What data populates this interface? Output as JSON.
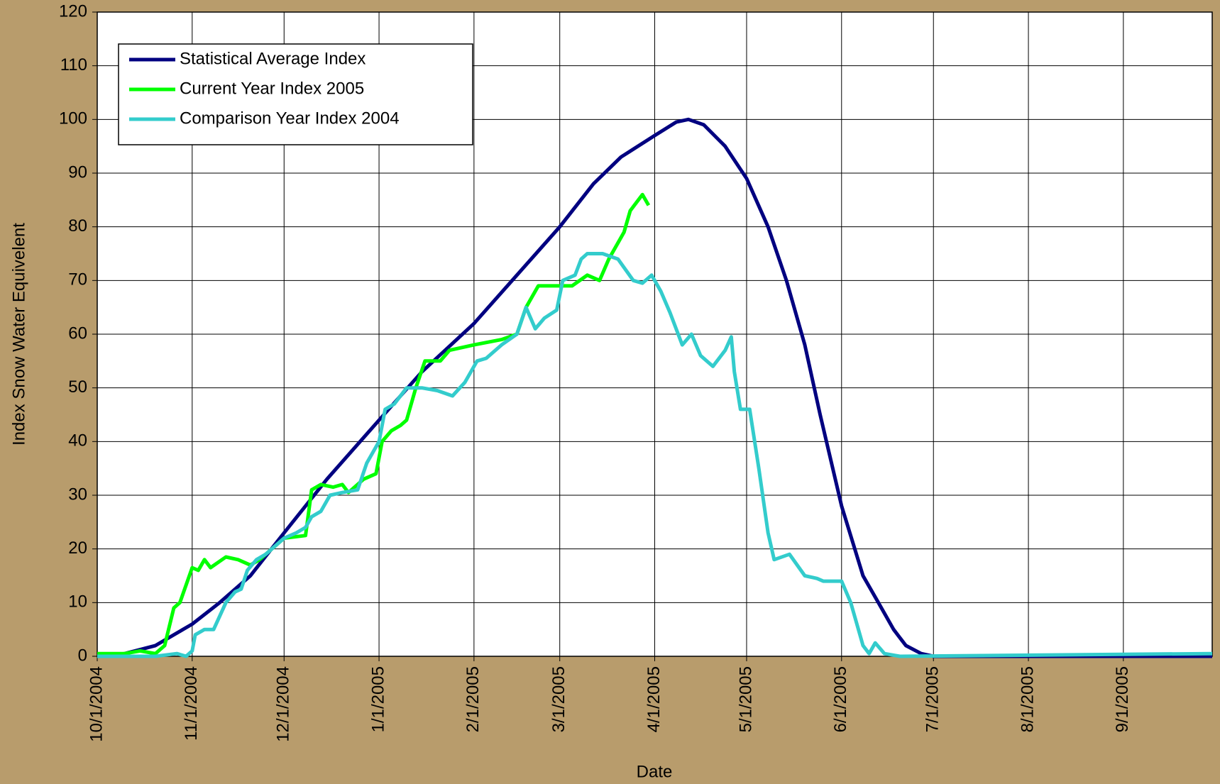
{
  "chart_data": {
    "type": "line",
    "x_label": "Date",
    "y_label": "Index Snow Water Equivelent",
    "xlim": [
      "10/1/2004",
      "9/30/2005"
    ],
    "xticks": [
      "10/1/2004",
      "11/1/2004",
      "12/1/2004",
      "1/1/2005",
      "2/1/2005",
      "3/1/2005",
      "4/1/2005",
      "5/1/2005",
      "6/1/2005",
      "7/1/2005",
      "8/1/2005",
      "9/1/2005"
    ],
    "ylim": [
      0,
      120
    ],
    "yticks": [
      0,
      10,
      20,
      30,
      40,
      50,
      60,
      70,
      80,
      90,
      100,
      110,
      120
    ],
    "grid": true,
    "legend": "upper left",
    "series": [
      {
        "name": "Statistical Average Index",
        "color": "#000080",
        "x": [
          "10/1/2004",
          "10/10/2004",
          "10/20/2004",
          "11/1/2004",
          "11/10/2004",
          "11/20/2004",
          "12/1/2004",
          "12/15/2004",
          "1/1/2005",
          "1/15/2005",
          "2/1/2005",
          "2/15/2005",
          "3/1/2005",
          "3/12/2005",
          "3/21/2005",
          "4/1/2005",
          "4/8/2005",
          "4/12/2005",
          "4/17/2005",
          "4/24/2005",
          "5/1/2005",
          "5/8/2005",
          "5/14/2005",
          "5/20/2005",
          "5/25/2005",
          "6/1/2005",
          "6/8/2005",
          "6/13/2005",
          "6/18/2005",
          "6/22/2005",
          "6/27/2005",
          "7/1/2005",
          "9/30/2005"
        ],
        "values": [
          0,
          0.5,
          2,
          6,
          10,
          15,
          23,
          33,
          44,
          53,
          62,
          71,
          80,
          88,
          93,
          97,
          99.5,
          100,
          99,
          95,
          89,
          80,
          70,
          58,
          45,
          28,
          15,
          10,
          5,
          2,
          0.5,
          0,
          0
        ]
      },
      {
        "name": "Current Year Index 2005",
        "color": "#00ff00",
        "x": [
          "10/1/2004",
          "10/10/2004",
          "10/15/2004",
          "10/20/2004",
          "10/23/2004",
          "10/26/2004",
          "10/28/2004",
          "11/1/2004",
          "11/3/2004",
          "11/5/2004",
          "11/7/2004",
          "11/12/2004",
          "11/16/2004",
          "11/20/2004",
          "11/23/2004",
          "12/1/2004",
          "12/8/2004",
          "12/10/2004",
          "12/13/2004",
          "12/17/2004",
          "12/20/2004",
          "12/22/2004",
          "12/27/2004",
          "12/31/2004",
          "1/2/2005",
          "1/5/2005",
          "1/8/2005",
          "1/10/2005",
          "1/13/2005",
          "1/16/2005",
          "1/21/2005",
          "1/24/2005",
          "2/1/2005",
          "2/10/2005",
          "2/15/2005",
          "2/18/2005",
          "2/22/2005",
          "3/1/2005",
          "3/5/2005",
          "3/10/2005",
          "3/14/2005",
          "3/17/2005",
          "3/20/2005",
          "3/22/2005",
          "3/24/2005",
          "3/28/2005",
          "3/30/2005"
        ],
        "values": [
          0.5,
          0.5,
          1,
          0.5,
          2,
          9,
          10,
          16.5,
          16,
          18,
          16.5,
          18.5,
          18,
          17,
          18,
          22,
          22.5,
          31,
          32,
          31.5,
          32,
          30.5,
          33,
          34,
          40,
          42,
          43,
          44,
          50,
          55,
          55,
          57,
          58,
          59,
          60,
          65,
          69,
          69,
          69,
          71,
          70,
          74,
          77,
          79,
          83,
          86,
          84
        ]
      },
      {
        "name": "Comparison Year Index 2004",
        "color": "#33cccc",
        "x": [
          "10/1/2004",
          "10/20/2004",
          "10/27/2004",
          "10/30/2004",
          "11/1/2004",
          "11/2/2004",
          "11/5/2004",
          "11/8/2004",
          "11/12/2004",
          "11/15/2004",
          "11/17/2004",
          "11/19/2004",
          "11/22/2004",
          "11/25/2004",
          "12/1/2004",
          "12/5/2004",
          "12/8/2004",
          "12/10/2004",
          "12/13/2004",
          "12/16/2004",
          "12/20/2004",
          "12/25/2004",
          "12/28/2004",
          "1/1/2005",
          "1/3/2005",
          "1/6/2005",
          "1/10/2005",
          "1/15/2005",
          "1/20/2005",
          "1/25/2005",
          "1/29/2005",
          "2/2/2005",
          "2/5/2005",
          "2/10/2005",
          "2/15/2005",
          "2/18/2005",
          "2/21/2005",
          "2/24/2005",
          "2/28/2005",
          "3/2/2005",
          "3/6/2005",
          "3/8/2005",
          "3/10/2005",
          "3/15/2005",
          "3/20/2005",
          "3/25/2005",
          "3/28/2005",
          "3/31/2005",
          "4/3/2005",
          "4/6/2005",
          "4/10/2005",
          "4/13/2005",
          "4/16/2005",
          "4/20/2005",
          "4/24/2005",
          "4/26/2005",
          "4/27/2005",
          "4/29/2005",
          "5/2/2005",
          "5/5/2005",
          "5/8/2005",
          "5/10/2005",
          "5/15/2005",
          "5/20/2005",
          "5/24/2005",
          "5/26/2005",
          "6/1/2005",
          "6/4/2005",
          "6/8/2005",
          "6/10/2005",
          "6/12/2005",
          "6/15/2005",
          "6/20/2005",
          "9/30/2005"
        ],
        "values": [
          0,
          0,
          0.5,
          0,
          1,
          4,
          5,
          5,
          10,
          12,
          12.5,
          16,
          18,
          19,
          22,
          23,
          24,
          26,
          27,
          30,
          30.5,
          31,
          36,
          40,
          46,
          47,
          50,
          50,
          49.5,
          48.5,
          51,
          55,
          55.5,
          58,
          60,
          65,
          61,
          63,
          64.5,
          70,
          71,
          74,
          75,
          75,
          74,
          70,
          69.5,
          71,
          68,
          64,
          58,
          60,
          56,
          54,
          57,
          59.5,
          53,
          46,
          46,
          35,
          23,
          18,
          19,
          15,
          14.5,
          14,
          14,
          10,
          2,
          0.5,
          2.5,
          0.5,
          0,
          0.5
        ]
      }
    ]
  }
}
